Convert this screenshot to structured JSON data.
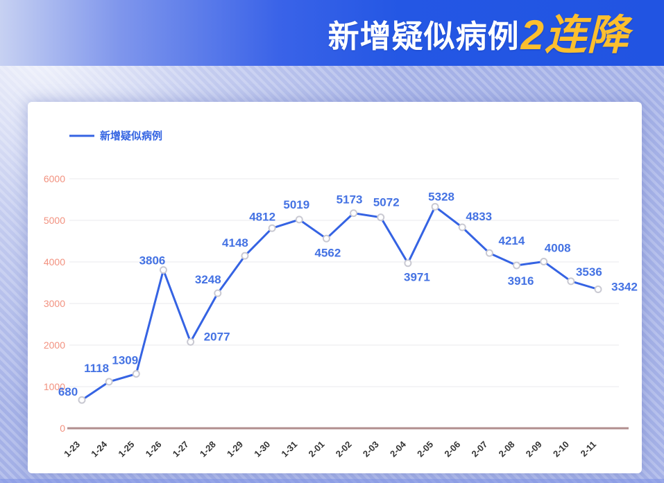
{
  "header": {
    "title_main": "新增疑似病例",
    "title_accent": "2连降",
    "accent_color": "#fcbf2e",
    "bg_left": "#c7d1f2",
    "bg_right": "#2154e2"
  },
  "legend": {
    "label": "新增疑似病例",
    "color": "#3565e2"
  },
  "chart_data": {
    "type": "line",
    "title": "新增疑似病例",
    "series_name": "新增疑似病例",
    "x": [
      "1-23",
      "1-24",
      "1-25",
      "1-26",
      "1-27",
      "1-28",
      "1-29",
      "1-30",
      "1-31",
      "2-01",
      "2-02",
      "2-03",
      "2-04",
      "2-05",
      "2-06",
      "2-07",
      "2-08",
      "2-09",
      "2-10",
      "2-11"
    ],
    "values": [
      680,
      1118,
      1309,
      3806,
      2077,
      3248,
      4148,
      4812,
      5019,
      4562,
      5173,
      5072,
      3971,
      5328,
      4833,
      4214,
      3916,
      4008,
      3536,
      3342
    ],
    "xlabel": "",
    "ylabel": "",
    "ylim": [
      0,
      6000
    ],
    "yticks": [
      0,
      1000,
      2000,
      3000,
      4000,
      5000,
      6000
    ],
    "grid": true,
    "legend_position": "top-left",
    "line_color": "#3563e3",
    "marker_stroke": "#c9c9d2",
    "marker_fill": "#ffffff",
    "data_label_color": "#4472e3",
    "ytick_color": "#f2917f",
    "xtick_color": "#333333",
    "axis_line_color": "#b18e8e",
    "gridline_color": "#e9e9ee"
  }
}
